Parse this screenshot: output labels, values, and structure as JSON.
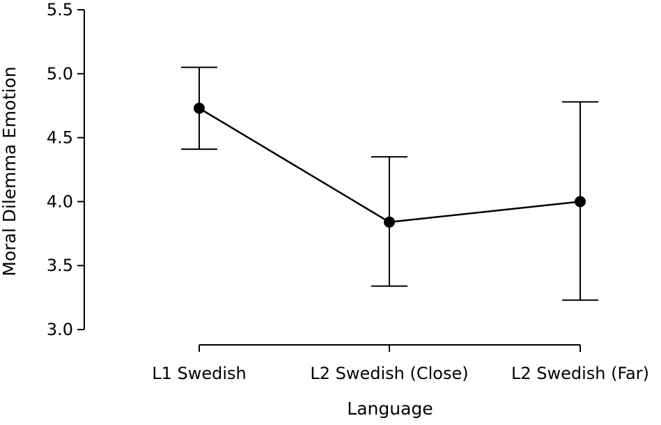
{
  "chart_data": {
    "type": "line",
    "title": "",
    "xlabel": "Language",
    "ylabel": "Moral Dilemma Emotion",
    "categories": [
      "L1 Swedish",
      "L2 Swedish (Close)",
      "L2 Swedish (Far)"
    ],
    "series": [
      {
        "values": [
          4.73,
          3.84,
          4.0
        ],
        "error_low": [
          4.41,
          3.34,
          3.23
        ],
        "error_high": [
          5.05,
          4.35,
          4.78
        ]
      }
    ],
    "ylim": [
      3.0,
      5.5
    ],
    "yticks": [
      "3.0",
      "3.5",
      "4.0",
      "4.5",
      "5.0",
      "5.5"
    ],
    "grid": false,
    "legend": "none",
    "colors": {
      "line": "#000000",
      "marker": "#000000",
      "axis": "#000000"
    }
  }
}
